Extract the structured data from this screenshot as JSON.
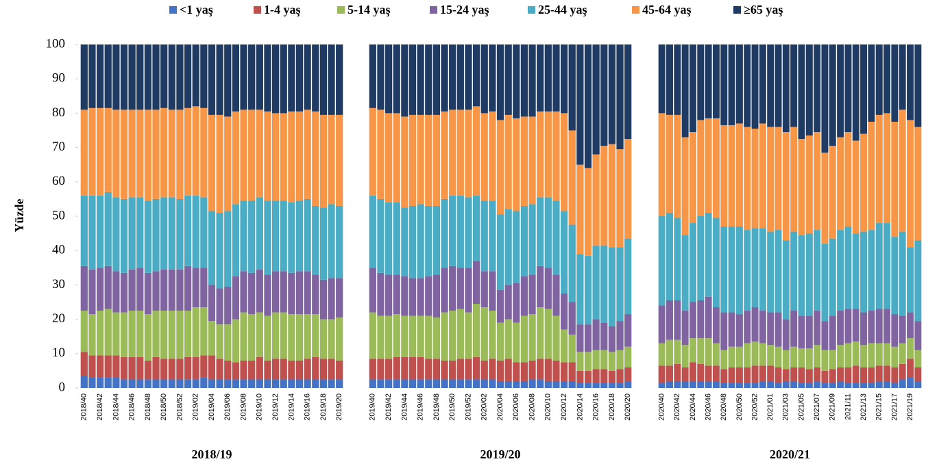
{
  "chart_data": {
    "type": "bar",
    "stacked": true,
    "ylabel": "Yüzde",
    "ylim": [
      0,
      100
    ],
    "yticks": [
      0,
      10,
      20,
      30,
      40,
      50,
      60,
      70,
      80,
      90,
      100
    ],
    "legend_position": "top",
    "series": [
      {
        "name": "<1 yaş",
        "color": "#4472c4"
      },
      {
        "name": "1-4 yaş",
        "color": "#c0504d"
      },
      {
        "name": "5-14 yaş",
        "color": "#9bbb59"
      },
      {
        "name": "15-24 yaş",
        "color": "#8064a2"
      },
      {
        "name": "25-44 yaş",
        "color": "#4bacc6"
      },
      {
        "name": "45-64 yaş",
        "color": "#f79646"
      },
      {
        "name": "≥65 yaş",
        "color": "#1f3b63"
      }
    ],
    "panels": [
      {
        "title": "2018/19",
        "categories": [
          "2018/40",
          null,
          "2018/42",
          null,
          "2018/44",
          null,
          "2018/46",
          null,
          "2018/48",
          null,
          "2018/50",
          null,
          "2018/52",
          null,
          "2019/02",
          null,
          "2019/04",
          null,
          "2019/06",
          null,
          "2019/08",
          null,
          "2019/10",
          null,
          "2019/12",
          null,
          "2019/14",
          null,
          "2019/16",
          null,
          "2019/18",
          null,
          "2019/20"
        ],
        "series": [
          {
            "values": [
              3.5,
              3,
              3,
              3,
              3,
              2.5,
              2.5,
              2.5,
              2.5,
              2.5,
              2.5,
              2.5,
              2.5,
              2.5,
              2.5,
              3,
              2.5,
              2.5,
              2.5,
              2.5,
              2.5,
              2.5,
              2.5,
              2.5,
              2.5,
              2.5,
              2.5,
              2.5,
              2.5,
              2.5,
              2.5,
              2.5,
              2.5
            ]
          },
          {
            "values": [
              7,
              6.5,
              6.5,
              6.5,
              6.5,
              6.5,
              6.5,
              6.5,
              5.5,
              6.5,
              6,
              6,
              6,
              6.5,
              6.5,
              6.5,
              7,
              6,
              5.5,
              5,
              5.5,
              5.5,
              6.5,
              5.5,
              6,
              6,
              5.5,
              5.5,
              6,
              6.5,
              6,
              6,
              5.5
            ]
          },
          {
            "values": [
              12,
              12,
              13,
              13.5,
              12.5,
              13,
              13.5,
              13.5,
              13.5,
              13.5,
              14,
              14,
              14,
              13.5,
              14.5,
              14,
              10,
              10,
              10.5,
              12.5,
              14,
              13.5,
              13,
              13,
              13.5,
              13.5,
              13.5,
              13.5,
              13,
              12.5,
              11.5,
              11.5,
              12.5
            ]
          },
          {
            "values": [
              13,
              13,
              12.5,
              12.5,
              12,
              11.5,
              12,
              12.5,
              12,
              11.5,
              12,
              12,
              12,
              13,
              11.5,
              11.5,
              10.5,
              10.5,
              11,
              12.5,
              12,
              12,
              12.5,
              12,
              12,
              12,
              12,
              12.5,
              12.5,
              11.5,
              11.5,
              12,
              11.5
            ]
          },
          {
            "values": [
              20.5,
              21.5,
              21,
              21.5,
              21.5,
              21.5,
              21,
              20.5,
              21,
              21,
              21,
              21,
              20.5,
              20.5,
              21,
              20.5,
              21.5,
              22,
              22,
              21,
              20.5,
              21,
              21,
              21.5,
              20.5,
              20.5,
              20.5,
              20.5,
              21,
              20,
              21,
              21.5,
              21
            ]
          },
          {
            "values": [
              25,
              25.5,
              25.5,
              24.5,
              25.5,
              26,
              25.5,
              25.5,
              26.5,
              26,
              26,
              25.5,
              26,
              25.5,
              26,
              26,
              28,
              28.5,
              27.5,
              27,
              26.5,
              26.5,
              25.5,
              26,
              25.5,
              25.5,
              26.5,
              26,
              26,
              27.5,
              27,
              26,
              26.5
            ]
          },
          {
            "values": [
              19,
              18.5,
              18.5,
              18.5,
              19,
              19,
              19,
              19,
              19,
              19,
              18.5,
              19,
              19,
              18.5,
              18,
              18.5,
              20.5,
              20.5,
              21,
              19.5,
              19,
              19,
              19,
              19.5,
              20,
              20,
              19.5,
              19.5,
              19,
              19.5,
              20.5,
              20.5,
              20.5
            ]
          }
        ]
      },
      {
        "title": "2019/20",
        "categories": [
          "2019/40",
          null,
          "2019/42",
          null,
          "2019/44",
          null,
          "2019/46",
          null,
          "2019/48",
          null,
          "2019/50",
          null,
          "2019/52",
          null,
          "2020/02",
          null,
          "2020/04",
          null,
          "2020/06",
          null,
          "2020/08",
          null,
          "2020/10",
          null,
          "2020/12",
          null,
          "2020/14",
          null,
          "2020/16",
          null,
          "2020/18",
          null,
          "2020/20"
        ],
        "series": [
          {
            "values": [
              2.5,
              2.5,
              2.5,
              2.5,
              2.5,
              2.5,
              2.5,
              2.5,
              2.5,
              2.5,
              2.5,
              2.5,
              2.5,
              2.5,
              2.5,
              2.5,
              2,
              2,
              2,
              2,
              2.5,
              2.5,
              2,
              2,
              2,
              2,
              1.5,
              1.5,
              1.5,
              1.5,
              1.5,
              1.5,
              2
            ]
          },
          {
            "values": [
              6,
              6,
              6,
              6.5,
              6.5,
              6.5,
              6.5,
              6,
              6,
              5.5,
              5.5,
              6,
              6,
              6.5,
              5.5,
              6,
              6,
              6.5,
              5.5,
              5.5,
              5.5,
              6,
              6.5,
              6,
              5.5,
              5.5,
              3.5,
              3.5,
              4,
              4,
              3.5,
              4,
              4
            ]
          },
          {
            "values": [
              13.5,
              12.5,
              12.5,
              12.5,
              12,
              12,
              12,
              12.5,
              12,
              14,
              14.5,
              14.5,
              13.5,
              15.5,
              15.5,
              14,
              11,
              11.5,
              11.5,
              13.5,
              13.5,
              15,
              14.5,
              13,
              9.5,
              8,
              5.5,
              5.5,
              5.5,
              5.5,
              5.5,
              5.5,
              6
            ]
          },
          {
            "values": [
              13,
              12.5,
              12,
              11.5,
              11.5,
              11,
              11,
              11.5,
              12.5,
              13,
              13,
              12,
              13,
              12.5,
              10.5,
              11.5,
              9.5,
              10,
              11.5,
              11.5,
              11.5,
              12,
              12,
              12,
              10.5,
              9.5,
              8,
              8,
              9,
              8,
              7.5,
              8.5,
              9.5
            ]
          },
          {
            "values": [
              21,
              21.5,
              21,
              21,
              20,
              21,
              21.5,
              20.5,
              20,
              20,
              20.5,
              21,
              20.5,
              19,
              20.5,
              20.5,
              22,
              22,
              21,
              20.5,
              20.5,
              20,
              20.5,
              21.5,
              24,
              22.5,
              20.5,
              20,
              21.5,
              22.5,
              23,
              21.5,
              22
            ]
          },
          {
            "values": [
              25.5,
              26,
              26,
              26,
              26.5,
              26.5,
              26,
              26.5,
              26.5,
              25.5,
              25,
              25,
              25.5,
              26,
              25.5,
              26,
              27.5,
              27.5,
              27,
              26,
              25.5,
              25,
              25,
              26,
              28.5,
              27.5,
              26,
              25.5,
              26.5,
              29,
              30,
              28.5,
              29
            ]
          },
          {
            "values": [
              18.5,
              19,
              20,
              20,
              21,
              20.5,
              20.5,
              20.5,
              20.5,
              19.5,
              19,
              19,
              19,
              18,
              20,
              19.5,
              22,
              20.5,
              21.5,
              21,
              21,
              19.5,
              19.5,
              19.5,
              20,
              25,
              35,
              36,
              32,
              29.5,
              29,
              30.5,
              27.5
            ]
          }
        ]
      },
      {
        "title": "2020/21",
        "categories": [
          "2020/40",
          null,
          "2020/42",
          null,
          "2020/44",
          null,
          "2020/46",
          null,
          "2020/48",
          null,
          "2020/50",
          null,
          "2020/52",
          null,
          "2021/01",
          null,
          "2021/03",
          null,
          "2021/05",
          null,
          "2021/07",
          null,
          "2021/09",
          null,
          "2021/11",
          null,
          "2021/13",
          null,
          "2021/15",
          null,
          "2021/17",
          null,
          "2021/19",
          null
        ],
        "series": [
          {
            "values": [
              1.5,
              2,
              2,
              2,
              2,
              2,
              2,
              2,
              1.5,
              1.5,
              1.5,
              1.5,
              1.5,
              2,
              2,
              1.5,
              2,
              2,
              1.5,
              1.5,
              2,
              1.5,
              1.5,
              2,
              1.5,
              1.5,
              1.5,
              1.5,
              2,
              2,
              1.5,
              2.5,
              3,
              2
            ]
          },
          {
            "values": [
              5,
              4.5,
              5,
              4,
              5.5,
              5,
              4.5,
              4.5,
              4,
              4.5,
              4.5,
              4.5,
              5,
              4.5,
              4.5,
              4.5,
              3.5,
              4,
              4.5,
              4,
              4,
              3.5,
              4,
              4,
              4.5,
              5,
              4.5,
              4.5,
              4.5,
              4.5,
              4.5,
              4.5,
              5.5,
              4
            ]
          },
          {
            "values": [
              6.5,
              7.5,
              7,
              6.5,
              7,
              7.5,
              8,
              6.5,
              5.5,
              6,
              6,
              7,
              7,
              6.5,
              6,
              6,
              5.5,
              6,
              5.5,
              6,
              6.5,
              6,
              5.5,
              6.5,
              7,
              7,
              6.5,
              7,
              6.5,
              6.5,
              6,
              6,
              6,
              5
            ]
          },
          {
            "values": [
              11,
              11.5,
              11.5,
              10,
              10.5,
              11,
              12,
              10.5,
              11,
              10,
              9.5,
              9.5,
              10,
              9.5,
              9.5,
              10,
              9,
              10.5,
              9.5,
              9.5,
              10,
              8.5,
              10,
              10,
              10,
              9.5,
              9.5,
              9.5,
              10,
              10,
              9.5,
              8,
              7.5,
              8.5
            ]
          },
          {
            "values": [
              26,
              25.5,
              24,
              22,
              23,
              24.5,
              24.5,
              26,
              25,
              25,
              25.5,
              23.5,
              23,
              24,
              23.5,
              24,
              23,
              23,
              23.5,
              24,
              23.5,
              22.5,
              22.5,
              23.5,
              24,
              22,
              23.5,
              23.5,
              25,
              25,
              22.5,
              24.5,
              19,
              23.5
            ]
          },
          {
            "values": [
              30,
              28.5,
              30,
              28.5,
              26.5,
              28,
              27.5,
              29,
              29.5,
              29.5,
              30,
              30,
              29,
              30.5,
              30.5,
              30,
              31.5,
              30.5,
              28,
              28.5,
              28.5,
              26.5,
              27,
              27,
              27.5,
              27,
              28.5,
              31.5,
              31.5,
              32,
              33.5,
              35.5,
              37,
              33
            ]
          },
          {
            "values": [
              20,
              20.5,
              20.5,
              27,
              25.5,
              22,
              21.5,
              21.5,
              23.5,
              23.5,
              23,
              24,
              24.5,
              23,
              24,
              24,
              25.5,
              24,
              27.5,
              26.5,
              25.5,
              31.5,
              29.5,
              27,
              25.5,
              28,
              26,
              22.5,
              20.5,
              20,
              22.5,
              19,
              22,
              24
            ]
          }
        ]
      }
    ]
  }
}
